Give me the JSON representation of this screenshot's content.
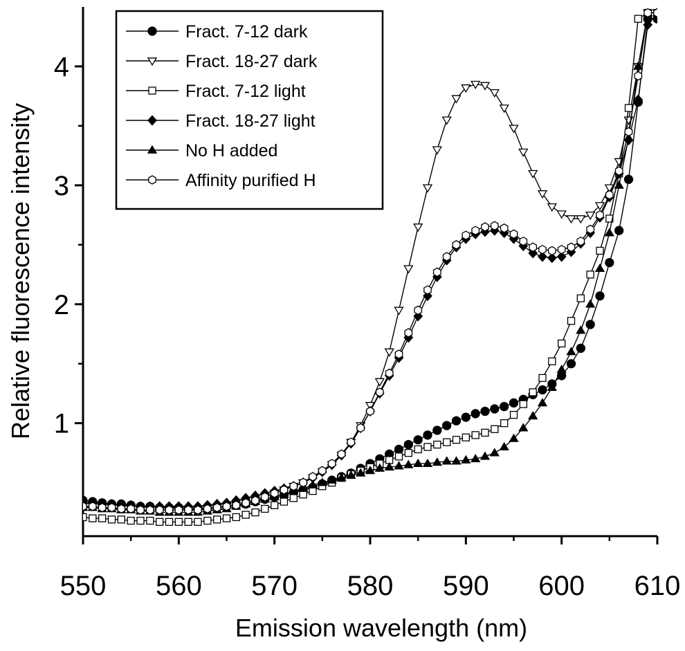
{
  "chart_data": {
    "type": "line",
    "title": "",
    "xlabel": "Emission wavelength (nm)",
    "ylabel": "Relative fluorescence intensity",
    "xlim": [
      550,
      610
    ],
    "ylim": [
      0.05,
      4.5
    ],
    "xticks": [
      550,
      560,
      570,
      580,
      590,
      600,
      610
    ],
    "yticks": [
      1,
      2,
      3,
      4
    ],
    "grid": false,
    "legend_position": "top-left",
    "x": [
      550,
      551,
      552,
      553,
      554,
      555,
      556,
      557,
      558,
      559,
      560,
      561,
      562,
      563,
      564,
      565,
      566,
      567,
      568,
      569,
      570,
      571,
      572,
      573,
      574,
      575,
      576,
      577,
      578,
      579,
      580,
      581,
      582,
      583,
      584,
      585,
      586,
      587,
      588,
      589,
      590,
      591,
      592,
      593,
      594,
      595,
      596,
      597,
      598,
      599,
      600,
      601,
      602,
      603,
      604,
      605,
      606,
      607,
      608,
      609,
      610
    ],
    "series": [
      {
        "name": "Fract. 7-12 dark",
        "marker": "filled-circle",
        "values": [
          0.35,
          0.34,
          0.33,
          0.32,
          0.32,
          0.31,
          0.3,
          0.3,
          0.29,
          0.29,
          0.29,
          0.28,
          0.28,
          0.28,
          0.29,
          0.3,
          0.31,
          0.32,
          0.34,
          0.36,
          0.38,
          0.4,
          0.42,
          0.44,
          0.46,
          0.49,
          0.52,
          0.55,
          0.58,
          0.62,
          0.66,
          0.7,
          0.74,
          0.78,
          0.82,
          0.86,
          0.9,
          0.94,
          0.98,
          1.02,
          1.05,
          1.08,
          1.1,
          1.12,
          1.14,
          1.17,
          1.2,
          1.24,
          1.28,
          1.33,
          1.4,
          1.5,
          1.63,
          1.83,
          2.07,
          2.35,
          2.62,
          3.05,
          3.7,
          4.4,
          4.4
        ]
      },
      {
        "name": "Fract. 18-27 dark",
        "marker": "open-triangle-down",
        "values": [
          0.3,
          0.3,
          0.29,
          0.29,
          0.28,
          0.28,
          0.27,
          0.27,
          0.27,
          0.27,
          0.27,
          0.27,
          0.27,
          0.28,
          0.29,
          0.3,
          0.31,
          0.33,
          0.35,
          0.38,
          0.41,
          0.44,
          0.47,
          0.5,
          0.54,
          0.59,
          0.65,
          0.73,
          0.84,
          0.98,
          1.15,
          1.35,
          1.6,
          1.95,
          2.3,
          2.65,
          2.98,
          3.3,
          3.55,
          3.73,
          3.82,
          3.85,
          3.84,
          3.78,
          3.65,
          3.48,
          3.28,
          3.1,
          2.93,
          2.82,
          2.76,
          2.72,
          2.72,
          2.75,
          2.83,
          2.98,
          3.2,
          3.55,
          4.0,
          4.45,
          4.45
        ]
      },
      {
        "name": "Fract. 7-12 light",
        "marker": "open-square",
        "values": [
          0.21,
          0.2,
          0.2,
          0.19,
          0.19,
          0.18,
          0.18,
          0.18,
          0.17,
          0.17,
          0.17,
          0.17,
          0.17,
          0.18,
          0.19,
          0.2,
          0.21,
          0.23,
          0.25,
          0.28,
          0.31,
          0.34,
          0.37,
          0.4,
          0.43,
          0.47,
          0.5,
          0.54,
          0.57,
          0.6,
          0.63,
          0.66,
          0.69,
          0.72,
          0.75,
          0.78,
          0.8,
          0.82,
          0.84,
          0.86,
          0.88,
          0.9,
          0.92,
          0.95,
          1.0,
          1.07,
          1.16,
          1.26,
          1.38,
          1.52,
          1.67,
          1.86,
          2.05,
          2.25,
          2.45,
          2.72,
          3.1,
          3.65,
          4.4,
          4.45,
          4.45
        ]
      },
      {
        "name": "Fract. 18-27 light",
        "marker": "filled-diamond",
        "values": [
          0.33,
          0.33,
          0.32,
          0.32,
          0.31,
          0.31,
          0.3,
          0.3,
          0.3,
          0.3,
          0.3,
          0.3,
          0.3,
          0.31,
          0.32,
          0.33,
          0.35,
          0.37,
          0.39,
          0.41,
          0.43,
          0.45,
          0.47,
          0.5,
          0.54,
          0.59,
          0.65,
          0.73,
          0.83,
          0.96,
          1.1,
          1.25,
          1.4,
          1.55,
          1.72,
          1.9,
          2.07,
          2.23,
          2.37,
          2.48,
          2.55,
          2.59,
          2.61,
          2.62,
          2.6,
          2.55,
          2.49,
          2.43,
          2.4,
          2.39,
          2.4,
          2.44,
          2.51,
          2.6,
          2.73,
          2.9,
          3.1,
          3.38,
          3.72,
          4.35,
          4.45
        ]
      },
      {
        "name": "No H added",
        "marker": "filled-triangle-up",
        "values": [
          0.29,
          0.29,
          0.28,
          0.28,
          0.27,
          0.27,
          0.26,
          0.26,
          0.25,
          0.25,
          0.25,
          0.25,
          0.25,
          0.26,
          0.27,
          0.28,
          0.3,
          0.32,
          0.34,
          0.36,
          0.38,
          0.4,
          0.43,
          0.45,
          0.48,
          0.5,
          0.52,
          0.54,
          0.56,
          0.58,
          0.6,
          0.62,
          0.63,
          0.64,
          0.65,
          0.66,
          0.66,
          0.67,
          0.68,
          0.68,
          0.69,
          0.7,
          0.72,
          0.75,
          0.8,
          0.87,
          0.96,
          1.06,
          1.17,
          1.3,
          1.45,
          1.6,
          1.78,
          2.0,
          2.3,
          2.6,
          3.0,
          3.4,
          4.0,
          4.45,
          4.45
        ]
      },
      {
        "name": "Affinity purified H",
        "marker": "open-hexagon",
        "values": [
          0.3,
          0.3,
          0.29,
          0.29,
          0.28,
          0.28,
          0.27,
          0.27,
          0.27,
          0.27,
          0.27,
          0.27,
          0.27,
          0.28,
          0.29,
          0.3,
          0.31,
          0.33,
          0.35,
          0.38,
          0.41,
          0.44,
          0.47,
          0.5,
          0.55,
          0.6,
          0.66,
          0.74,
          0.84,
          0.96,
          1.1,
          1.26,
          1.42,
          1.58,
          1.76,
          1.95,
          2.12,
          2.27,
          2.4,
          2.5,
          2.58,
          2.62,
          2.65,
          2.66,
          2.64,
          2.59,
          2.53,
          2.48,
          2.46,
          2.45,
          2.46,
          2.48,
          2.53,
          2.63,
          2.75,
          2.92,
          3.12,
          3.45,
          3.92,
          4.45,
          4.45
        ]
      }
    ]
  }
}
